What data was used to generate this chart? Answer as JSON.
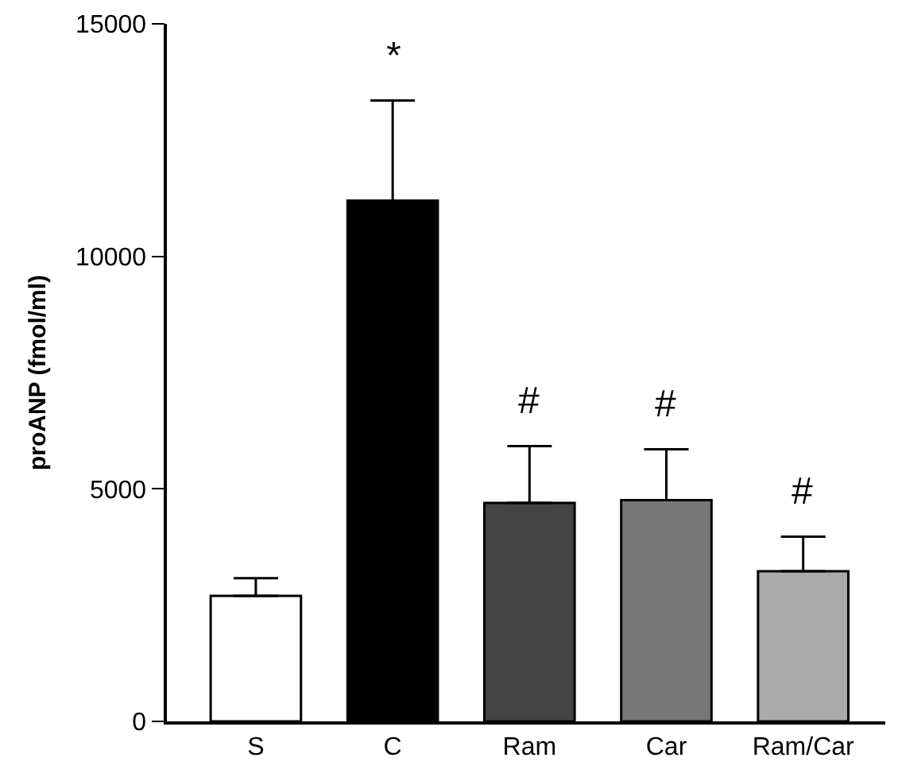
{
  "chart_data": {
    "type": "bar",
    "ylabel": "proANP (fmol/ml)",
    "categories": [
      "S",
      "C",
      "Ram",
      "Car",
      "Ram/Car"
    ],
    "values": [
      2700,
      11200,
      4700,
      4760,
      3230
    ],
    "errors": [
      [
        2700,
        3080
      ],
      [
        11200,
        13350
      ],
      [
        4700,
        5920
      ],
      [
        4760,
        5850
      ],
      [
        3230,
        3970
      ]
    ],
    "colors": [
      "#ffffff",
      "#000000",
      "#444444",
      "#777777",
      "#aaaaaa"
    ],
    "ylim": [
      0,
      15000
    ],
    "yticks": [
      0,
      5000,
      10000,
      15000
    ],
    "legend": false,
    "annotations": [
      "*",
      "#",
      "#",
      "#"
    ]
  }
}
